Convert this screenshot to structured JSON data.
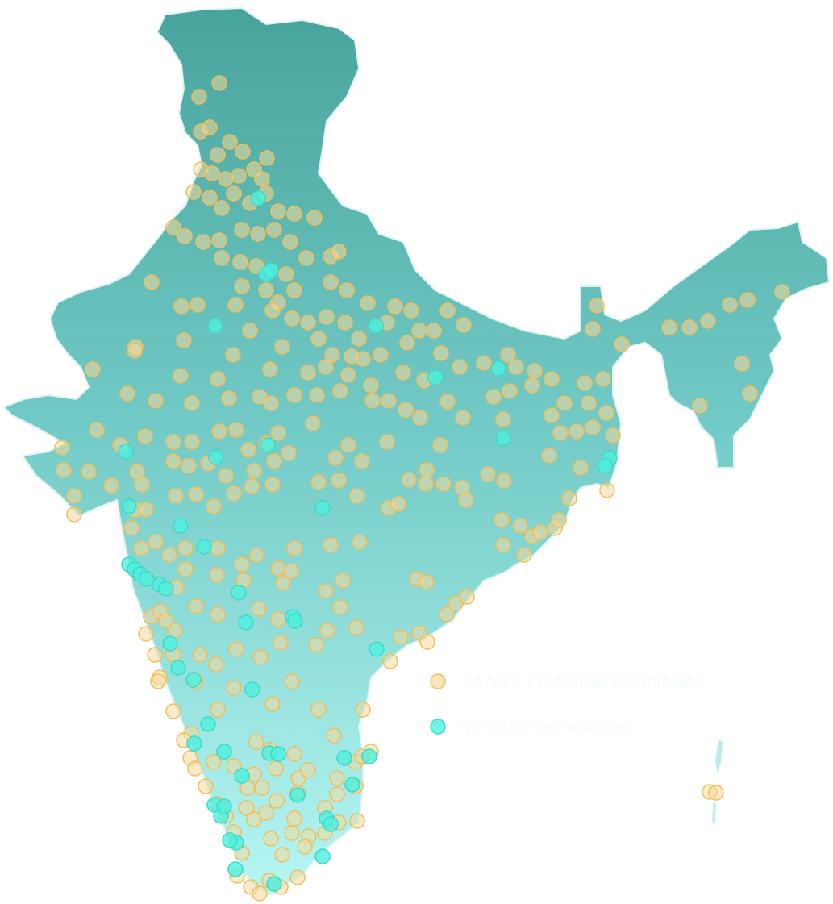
{
  "colors": {
    "land_top": "#47a49c",
    "land_mid": "#73cbc7",
    "land_bottom": "#b6f6f3",
    "franchise_fill": "#f5d99c",
    "franchise_stroke": "#f0be5b",
    "inhouse_fill": "#4ef0de",
    "inhouse_stroke": "#3fd8c8",
    "legend_text": "#f6fbfb"
  },
  "legend": [
    {
      "key": "franchise",
      "label": "Service Franchise technicians"
    },
    {
      "key": "inhouse",
      "label": "In-house technicians"
    }
  ],
  "technician_sites": {
    "franchise_count_visible": "many",
    "inhouse_count_visible": "some"
  }
}
